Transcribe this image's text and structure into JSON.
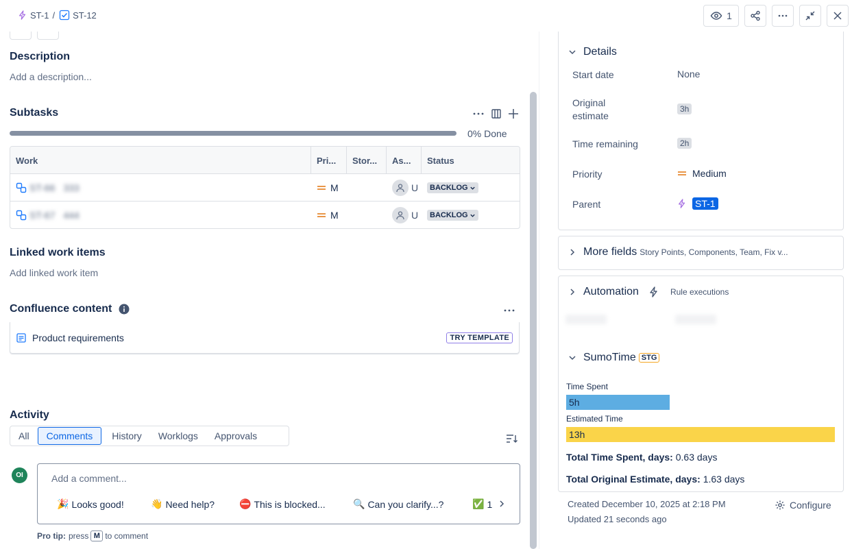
{
  "breadcrumb": {
    "parent": "ST-1",
    "separator": "/",
    "current": "ST-12"
  },
  "toolbar": {
    "watch_count": "1"
  },
  "description": {
    "heading": "Description",
    "placeholder": "Add a description..."
  },
  "subtasks": {
    "heading": "Subtasks",
    "progress_percent": 0,
    "progress_label": "0% Done",
    "columns": [
      "Work",
      "Pri...",
      "Stor...",
      "As...",
      "Status"
    ],
    "rows": [
      {
        "key": "ST-66",
        "summary": "333",
        "priority": "M",
        "assignee": "U",
        "status": "BACKLOG"
      },
      {
        "key": "ST-67",
        "summary": "444",
        "priority": "M",
        "assignee": "U",
        "status": "BACKLOG"
      }
    ]
  },
  "linked": {
    "heading": "Linked work items",
    "placeholder": "Add linked work item"
  },
  "confluence": {
    "heading": "Confluence content",
    "item": "Product requirements",
    "action": "TRY TEMPLATE"
  },
  "activity": {
    "heading": "Activity",
    "tabs": [
      "All",
      "Comments",
      "History",
      "Worklogs",
      "Approvals"
    ],
    "active_tab": "Comments",
    "avatar_initials": "OI",
    "comment_placeholder": "Add a comment...",
    "quick_replies": [
      {
        "emoji": "🎉",
        "text": "Looks good!"
      },
      {
        "emoji": "👋",
        "text": "Need help?"
      },
      {
        "emoji": "⛔",
        "text": "This is blocked..."
      },
      {
        "emoji": "🔍",
        "text": "Can you clarify...?"
      },
      {
        "emoji": "✅",
        "text": "1"
      }
    ],
    "pro_tip_label": "Pro tip:",
    "pro_tip_pre": "press",
    "pro_tip_key": "M",
    "pro_tip_post": "to comment"
  },
  "details": {
    "heading": "Details",
    "fields": {
      "start_date": {
        "label": "Start date",
        "value": "None"
      },
      "original_estimate": {
        "label": "Original estimate",
        "value": "3h"
      },
      "time_remaining": {
        "label": "Time remaining",
        "value": "2h"
      },
      "priority": {
        "label": "Priority",
        "value": "Medium"
      },
      "parent": {
        "label": "Parent",
        "value": "ST-1"
      }
    }
  },
  "more_fields": {
    "heading": "More fields",
    "summary": "Story Points, Components, Team, Fix v..."
  },
  "automation": {
    "heading": "Automation",
    "link": "Rule executions"
  },
  "sumotime": {
    "heading": "SumoTime",
    "badge": "STG",
    "time_spent_label": "Time Spent",
    "time_spent": "5h",
    "time_spent_hours": 5,
    "estimated_label": "Estimated Time",
    "estimated": "13h",
    "estimated_hours": 13,
    "total_spent_label": "Total Time Spent, days:",
    "total_spent_value": "0.63 days",
    "total_estimate_label": "Total Original Estimate, days:",
    "total_estimate_value": "1.63 days",
    "colors": {
      "spent": "#5dade2",
      "estimated": "#fad449"
    }
  },
  "meta": {
    "created": "Created December 10, 2025 at 2:18 PM",
    "updated": "Updated 21 seconds ago",
    "configure": "Configure"
  }
}
